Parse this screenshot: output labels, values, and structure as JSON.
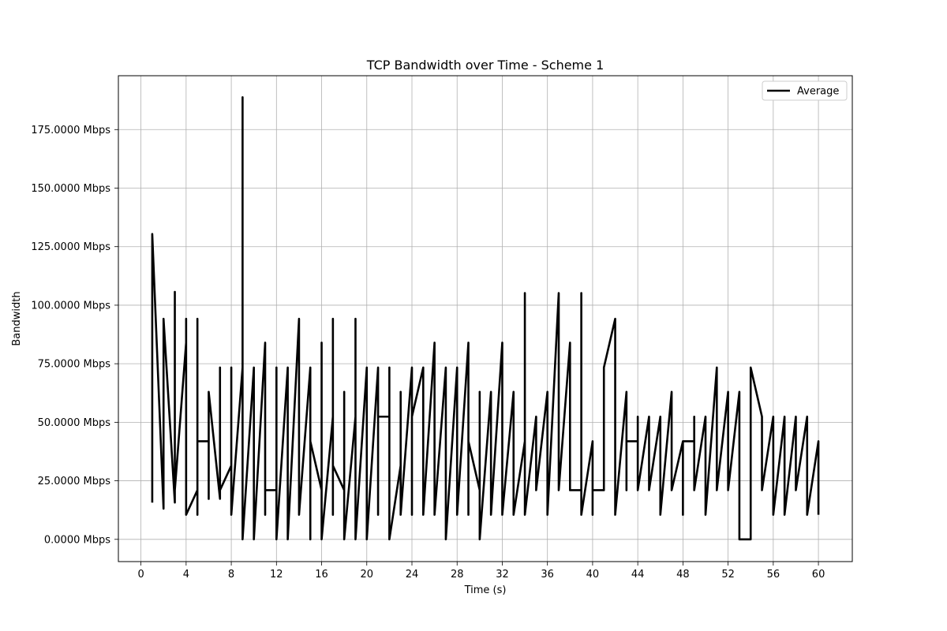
{
  "chart_data": {
    "type": "line",
    "title": "TCP Bandwidth over Time - Scheme 1",
    "xlabel": "Time (s)",
    "ylabel": "Bandwidth",
    "xlim": [
      -2,
      63
    ],
    "ylim": [
      -9.5,
      198
    ],
    "xticks": [
      0,
      4,
      8,
      12,
      16,
      20,
      24,
      28,
      32,
      36,
      40,
      44,
      48,
      52,
      56,
      60
    ],
    "xtick_labels": [
      "0",
      "4",
      "8",
      "12",
      "16",
      "20",
      "24",
      "28",
      "32",
      "36",
      "40",
      "44",
      "48",
      "52",
      "56",
      "60"
    ],
    "yticks": [
      0,
      25,
      50,
      75,
      100,
      125,
      150,
      175
    ],
    "ytick_labels": [
      "0.0000 Mbps",
      "25.0000 Mbps",
      "50.0000 Mbps",
      "75.0000 Mbps",
      "100.0000 Mbps",
      "125.0000 Mbps",
      "150.0000 Mbps",
      "175.0000 Mbps"
    ],
    "grid": true,
    "legend_position": "top-right",
    "series": [
      {
        "name": "Average",
        "color": "#000000",
        "points": [
          [
            1,
            15.7
          ],
          [
            1,
            130.4
          ],
          [
            2,
            13.1
          ],
          [
            2,
            94.2
          ],
          [
            3,
            15.7
          ],
          [
            3,
            105.7
          ],
          [
            3,
            21.0
          ],
          [
            4,
            84.0
          ],
          [
            4,
            94.2
          ],
          [
            4,
            10.5
          ],
          [
            5,
            21.0
          ],
          [
            5,
            94.2
          ],
          [
            5,
            10.5
          ],
          [
            5,
            41.9
          ],
          [
            6,
            41.9
          ],
          [
            6,
            17.3
          ],
          [
            6,
            63.0
          ],
          [
            7,
            17.3
          ],
          [
            7,
            73.4
          ],
          [
            7,
            21.0
          ],
          [
            8,
            31.5
          ],
          [
            8,
            73.4
          ],
          [
            8,
            10.5
          ],
          [
            9,
            73.4
          ],
          [
            9,
            188.8
          ],
          [
            9,
            0.0
          ],
          [
            10,
            73.4
          ],
          [
            10,
            0.0
          ],
          [
            11,
            84.0
          ],
          [
            11,
            10.5
          ],
          [
            11,
            21.0
          ],
          [
            12,
            21.0
          ],
          [
            12,
            73.4
          ],
          [
            12,
            0.0
          ],
          [
            13,
            73.4
          ],
          [
            13,
            0.0
          ],
          [
            14,
            94.2
          ],
          [
            14,
            10.5
          ],
          [
            15,
            73.4
          ],
          [
            15,
            0.0
          ],
          [
            15,
            41.9
          ],
          [
            16,
            21.0
          ],
          [
            16,
            84.0
          ],
          [
            16,
            0.0
          ],
          [
            17,
            52.4
          ],
          [
            17,
            94.2
          ],
          [
            17,
            10.5
          ],
          [
            17,
            31.5
          ],
          [
            18,
            21.0
          ],
          [
            18,
            63.0
          ],
          [
            18,
            0.0
          ],
          [
            19,
            52.4
          ],
          [
            19,
            94.2
          ],
          [
            19,
            0.0
          ],
          [
            20,
            73.4
          ],
          [
            20,
            0.0
          ],
          [
            21,
            73.4
          ],
          [
            21,
            10.5
          ],
          [
            21,
            52.4
          ],
          [
            22,
            52.4
          ],
          [
            22,
            73.4
          ],
          [
            22,
            0.0
          ],
          [
            23,
            31.5
          ],
          [
            23,
            63.0
          ],
          [
            23,
            10.5
          ],
          [
            24,
            73.4
          ],
          [
            24,
            10.5
          ],
          [
            24,
            52.4
          ],
          [
            25,
            73.4
          ],
          [
            25,
            10.5
          ],
          [
            26,
            84.0
          ],
          [
            26,
            10.5
          ],
          [
            27,
            73.4
          ],
          [
            27,
            0.0
          ],
          [
            28,
            73.4
          ],
          [
            28,
            10.5
          ],
          [
            29,
            84.0
          ],
          [
            29,
            10.5
          ],
          [
            29,
            41.9
          ],
          [
            30,
            21.0
          ],
          [
            30,
            63.0
          ],
          [
            30,
            0.0
          ],
          [
            31,
            63.0
          ],
          [
            31,
            10.5
          ],
          [
            32,
            84.0
          ],
          [
            32,
            10.5
          ],
          [
            33,
            63.0
          ],
          [
            33,
            10.5
          ],
          [
            34,
            41.9
          ],
          [
            34,
            105.2
          ],
          [
            34,
            10.5
          ],
          [
            35,
            52.4
          ],
          [
            35,
            21.0
          ],
          [
            36,
            63.0
          ],
          [
            36,
            10.5
          ],
          [
            37,
            105.2
          ],
          [
            37,
            21.0
          ],
          [
            38,
            84.0
          ],
          [
            38,
            21.0
          ],
          [
            39,
            21.0
          ],
          [
            39,
            105.2
          ],
          [
            39,
            10.5
          ],
          [
            40,
            41.9
          ],
          [
            40,
            10.5
          ],
          [
            40,
            21.0
          ],
          [
            41,
            21.0
          ],
          [
            41,
            73.4
          ],
          [
            42,
            94.2
          ],
          [
            42,
            10.5
          ],
          [
            43,
            63.0
          ],
          [
            43,
            21.0
          ],
          [
            43,
            41.9
          ],
          [
            44,
            41.9
          ],
          [
            44,
            52.4
          ],
          [
            44,
            21.0
          ],
          [
            45,
            52.4
          ],
          [
            45,
            21.0
          ],
          [
            46,
            52.4
          ],
          [
            46,
            10.5
          ],
          [
            47,
            63.0
          ],
          [
            47,
            21.0
          ],
          [
            48,
            41.9
          ],
          [
            48,
            10.5
          ],
          [
            48,
            41.9
          ],
          [
            49,
            41.9
          ],
          [
            49,
            52.4
          ],
          [
            49,
            21.0
          ],
          [
            50,
            52.4
          ],
          [
            50,
            10.5
          ],
          [
            51,
            73.4
          ],
          [
            51,
            21.0
          ],
          [
            52,
            63.0
          ],
          [
            52,
            21.0
          ],
          [
            53,
            63.0
          ],
          [
            53,
            0.0
          ],
          [
            54,
            0.0
          ],
          [
            54,
            73.4
          ],
          [
            55,
            52.4
          ],
          [
            55,
            21.0
          ],
          [
            56,
            52.4
          ],
          [
            56,
            10.5
          ],
          [
            57,
            52.4
          ],
          [
            57,
            10.5
          ],
          [
            58,
            52.4
          ],
          [
            58,
            21.0
          ],
          [
            59,
            52.4
          ],
          [
            59,
            10.5
          ],
          [
            60,
            41.9
          ],
          [
            60,
            10.5
          ]
        ]
      }
    ]
  }
}
